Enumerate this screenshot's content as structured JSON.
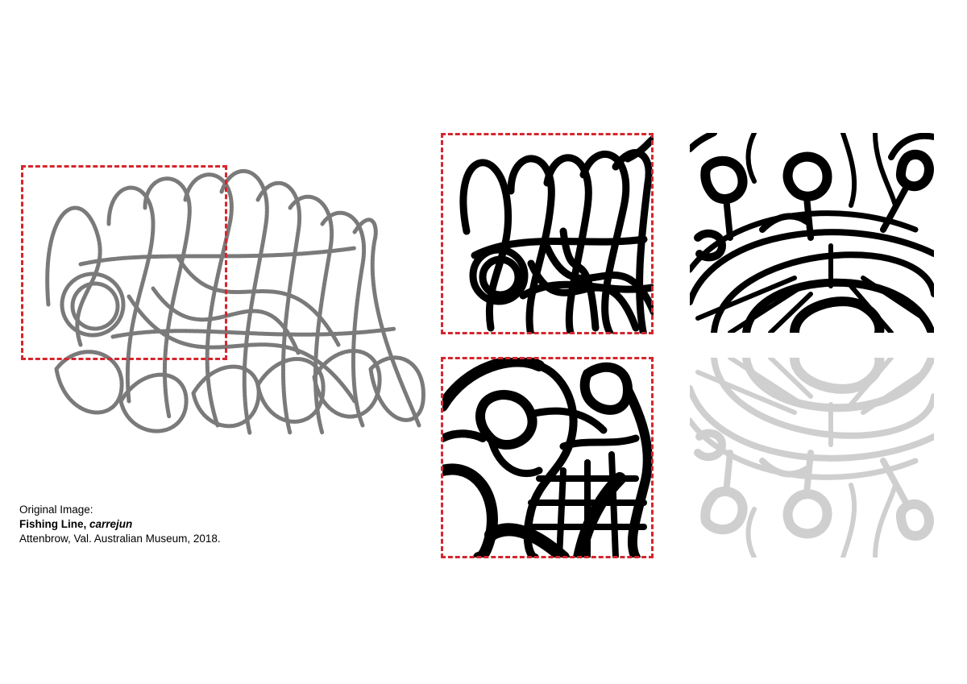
{
  "caption": {
    "line1": "Original Image:",
    "title_main": "Fishing Line, ",
    "title_italic": "carrejun",
    "credit": "Attenbrow, Val. Australian Museum, 2018."
  },
  "colors": {
    "rope": "#7a7a7a",
    "ink": "#000000",
    "ghost": "#cfcfcf",
    "frame": "#d6262d"
  }
}
